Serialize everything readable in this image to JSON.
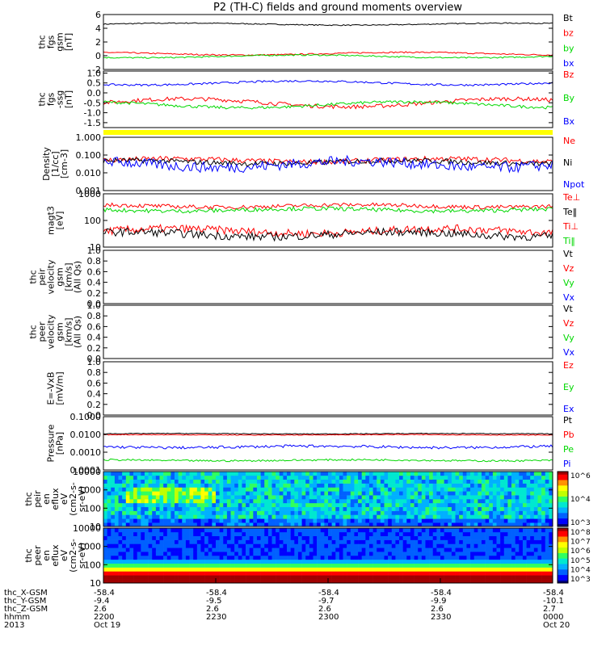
{
  "title": "P2 (TH-C) fields and ground moments overview",
  "colors": {
    "black": "#000000",
    "red": "#ff0000",
    "green": "#00d800",
    "blue": "#0000ff",
    "yellow": "#ffff00"
  },
  "colorbar_ticks_ion": [
    "10^6",
    "10^4",
    "10^3"
  ],
  "colorbar_ticks_elec": [
    "10^8",
    "10^7",
    "10^6",
    "10^5",
    "10^4",
    "10^3"
  ],
  "ephemeris": {
    "rows": [
      {
        "label": "thc_X-GSM",
        "values": [
          "-58.4",
          "-58.4",
          "-58.4",
          "-58.4",
          "-58.4"
        ]
      },
      {
        "label": "thc_Y-GSM",
        "values": [
          "-9.4",
          "-9.5",
          "-9.7",
          "-9.9",
          "-10.1"
        ]
      },
      {
        "label": "thc_Z-GSM",
        "values": [
          "2.6",
          "2.6",
          "2.6",
          "2.6",
          "2.7"
        ]
      },
      {
        "label": "hhmm",
        "values": [
          "2200",
          "2230",
          "2300",
          "2330",
          "0000"
        ]
      },
      {
        "label": "2013",
        "values": [
          "Oct 19",
          "",
          "",
          "",
          "Oct 20"
        ]
      }
    ]
  },
  "chart_data": [
    {
      "type": "line",
      "ylabel": [
        "thc",
        "fgs",
        "gsm",
        "[nT]"
      ],
      "yticks": [
        "6",
        "4",
        "2",
        "0",
        "-2"
      ],
      "ylim": [
        -2,
        6
      ],
      "series": [
        {
          "name": "Bt",
          "color": "#000000",
          "level": 4.6,
          "noise": 0.15
        },
        {
          "name": "bz",
          "color": "#ff0000",
          "level": 0.3,
          "noise": 0.2
        },
        {
          "name": "by",
          "color": "#00d800",
          "level": -0.1,
          "noise": 0.2
        },
        {
          "name": "bx",
          "color": "#0000ff",
          "level": 0,
          "noise": 0
        }
      ]
    },
    {
      "type": "line",
      "ylabel": [
        "thc",
        "fgs",
        "-ssg",
        "[nT]"
      ],
      "yticks": [
        "1.0",
        "0.5",
        "0.0",
        "-0.5",
        "-1.0",
        "-1.5"
      ],
      "ylim": [
        -1.75,
        1.1
      ],
      "series": [
        {
          "name": "Bz",
          "color": "#ff0000",
          "level": -0.5,
          "noise": 0.2
        },
        {
          "name": "By",
          "color": "#00d800",
          "level": -0.6,
          "noise": 0.15
        },
        {
          "name": "Bx",
          "color": "#0000ff",
          "level": 0.5,
          "noise": 0.1
        }
      ]
    },
    {
      "type": "line",
      "scale": "log",
      "ylabel": [
        "Density",
        "[1/cc]",
        "[cm-3]"
      ],
      "yticks": [
        "1.000",
        "0.100",
        "0.010",
        "0.001"
      ],
      "ylim": [
        0.001,
        1.0
      ],
      "series": [
        {
          "name": "Ne",
          "color": "#ff0000",
          "level": 0.05,
          "noise": 0.3
        },
        {
          "name": "Ni",
          "color": "#000000",
          "level": 0.04,
          "noise": 0.3
        },
        {
          "name": "Npot",
          "color": "#0000ff",
          "level": 0.03,
          "noise": 0.6
        }
      ]
    },
    {
      "type": "line",
      "scale": "log",
      "ylabel": [
        "magt3",
        "[eV]"
      ],
      "yticks": [
        "1000",
        "100",
        "10"
      ],
      "ylim": [
        10,
        1000
      ],
      "series": [
        {
          "name": "Te⊥",
          "color": "#ff0000",
          "level": 40,
          "noise": 0.3
        },
        {
          "name": "Te‖",
          "color": "#000000",
          "level": 30,
          "noise": 0.3
        },
        {
          "name": "Ti⊥",
          "color": "#ff0000",
          "level": 350,
          "noise": 0.15
        },
        {
          "name": "Ti‖",
          "color": "#00d800",
          "level": 250,
          "noise": 0.15
        }
      ]
    },
    {
      "type": "line",
      "ylabel": [
        "thc",
        "peir",
        "velocity",
        "gsm",
        "[km/s]",
        "(All Qs)"
      ],
      "yticks": [
        "1.0",
        "0.8",
        "0.6",
        "0.4",
        "0.2",
        "0.0"
      ],
      "ylim": [
        0,
        1
      ],
      "series": [
        {
          "name": "Vt",
          "color": "#000000"
        },
        {
          "name": "Vz",
          "color": "#ff0000"
        },
        {
          "name": "Vy",
          "color": "#00d800"
        },
        {
          "name": "Vx",
          "color": "#0000ff"
        }
      ]
    },
    {
      "type": "line",
      "ylabel": [
        "thc",
        "peer",
        "velocity",
        "gsm",
        "[km/s]",
        "(All Qs)"
      ],
      "yticks": [
        "1.0",
        "0.8",
        "0.6",
        "0.4",
        "0.2",
        "0.0"
      ],
      "ylim": [
        0,
        1
      ],
      "series": [
        {
          "name": "Vt",
          "color": "#000000"
        },
        {
          "name": "Vz",
          "color": "#ff0000"
        },
        {
          "name": "Vy",
          "color": "#00d800"
        },
        {
          "name": "Vx",
          "color": "#0000ff"
        }
      ]
    },
    {
      "type": "line",
      "ylabel": [
        "E=-VxB",
        "[mV/m]"
      ],
      "yticks": [
        "1.0",
        "0.8",
        "0.6",
        "0.4",
        "0.2",
        "0.0"
      ],
      "ylim": [
        0,
        1
      ],
      "series": [
        {
          "name": "Ez",
          "color": "#ff0000"
        },
        {
          "name": "Ey",
          "color": "#00d800"
        },
        {
          "name": "Ex",
          "color": "#0000ff"
        }
      ]
    },
    {
      "type": "line",
      "scale": "log",
      "ylabel": [
        "Pressure",
        "[nPa]"
      ],
      "yticks": [
        "0.1000",
        "0.0100",
        "0.0010",
        "0.0001"
      ],
      "ylim": [
        0.0001,
        0.1
      ],
      "series": [
        {
          "name": "Pt",
          "color": "#000000",
          "level": 0.011,
          "noise": 0.04
        },
        {
          "name": "Pb",
          "color": "#ff0000",
          "level": 0.0095,
          "noise": 0.04
        },
        {
          "name": "Pe",
          "color": "#00d800",
          "level": 0.00035,
          "noise": 0.1
        },
        {
          "name": "Pi",
          "color": "#0000ff",
          "level": 0.002,
          "noise": 0.15
        }
      ]
    },
    {
      "type": "heatmap",
      "scale": "log",
      "ylabel": [
        "thc",
        "peir",
        "en",
        "eflux",
        "eV",
        "(cm2-s-",
        "sr-eV)"
      ],
      "yticks": [
        "10000",
        "1000",
        "100",
        "10"
      ],
      "ylim": [
        10,
        10000
      ]
    },
    {
      "type": "heatmap",
      "scale": "log",
      "ylabel": [
        "thc",
        "peer",
        "en",
        "eflux",
        "eV",
        "(cm2-s-",
        "sr-eV)"
      ],
      "yticks": [
        "10000",
        "1000",
        "100",
        "10"
      ],
      "ylim": [
        10,
        10000
      ]
    }
  ]
}
